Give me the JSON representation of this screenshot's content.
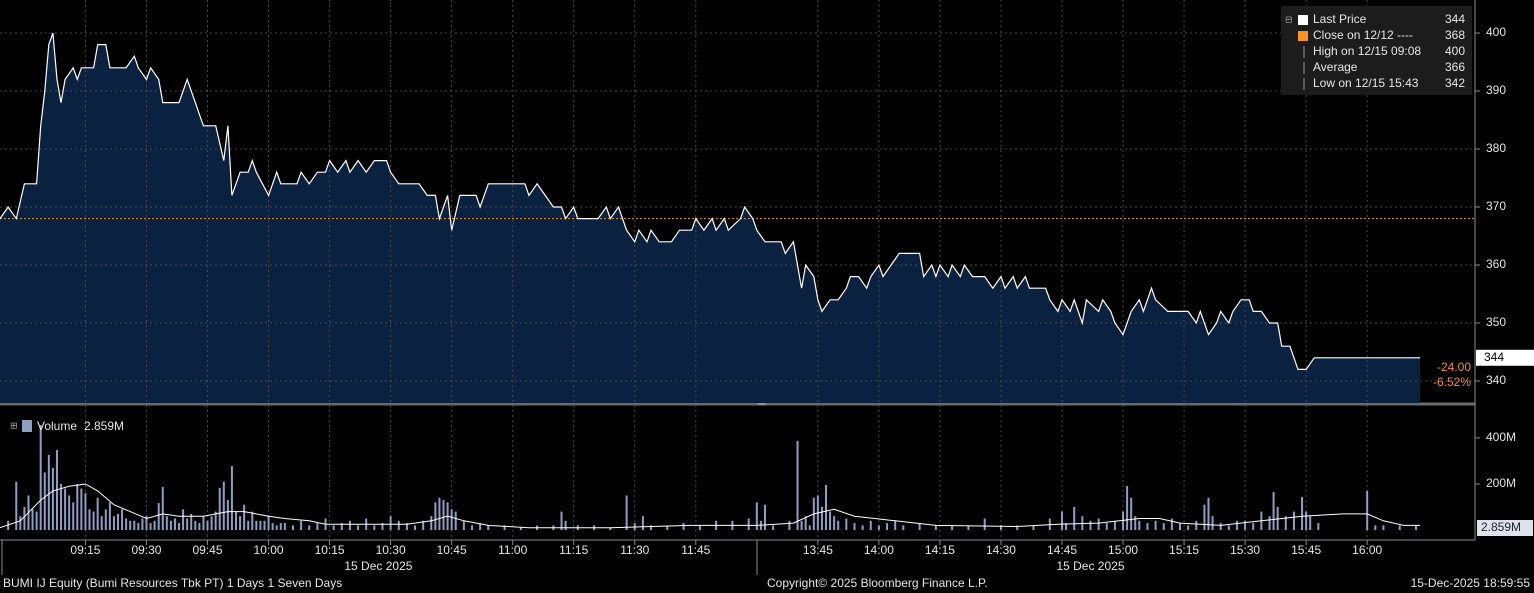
{
  "chart_data": [
    {
      "type": "line",
      "name": "Last Price",
      "color": "#ffffff",
      "fill": "#0b2140",
      "x": [
        0,
        2,
        4,
        6,
        9,
        10,
        11,
        12,
        13,
        14,
        15,
        16,
        18,
        19,
        20,
        23,
        24,
        26,
        27,
        31,
        33,
        34,
        36,
        37,
        39,
        40,
        44,
        46,
        48,
        50,
        53,
        55,
        56,
        57,
        59,
        61,
        62,
        63,
        66,
        68,
        69,
        73,
        74,
        76,
        78,
        80,
        81,
        83,
        85,
        86,
        88,
        90,
        92,
        95,
        96,
        98,
        103,
        105,
        107,
        108,
        110,
        111,
        113,
        117,
        118,
        120,
        129,
        130,
        132,
        134,
        136,
        138,
        139,
        141,
        142,
        147,
        149,
        150,
        152,
        154,
        156,
        157,
        159,
        160,
        162,
        165,
        167,
        170,
        171,
        173,
        175,
        176,
        178,
        179,
        182,
        183,
        185,
        186,
        188,
        192,
        193,
        195,
        196,
        197,
        198,
        200,
        201,
        202,
        204,
        206,
        208,
        209,
        211,
        213,
        214,
        216,
        217,
        219,
        221,
        226,
        227,
        229,
        230,
        231,
        233,
        234,
        236,
        237,
        239,
        242,
        244,
        246,
        247,
        249,
        250,
        252,
        253,
        257,
        258,
        260,
        261,
        263,
        264,
        266,
        267,
        270,
        271,
        273,
        274,
        276,
        278,
        280,
        281,
        283,
        284,
        287,
        292,
        294,
        295,
        297,
        299,
        300,
        302,
        303,
        305,
        307,
        308,
        310,
        312,
        314,
        315,
        317,
        319,
        321,
        323,
        349
      ],
      "values": [
        368,
        370,
        368,
        374,
        374,
        384,
        390,
        398,
        400,
        392,
        388,
        392,
        394,
        392,
        394,
        394,
        398,
        398,
        394,
        394,
        396,
        394,
        392,
        394,
        392,
        388,
        388,
        392,
        388,
        384,
        384,
        378,
        384,
        372,
        376,
        376,
        378,
        376,
        372,
        376,
        374,
        374,
        376,
        374,
        376,
        376,
        378,
        376,
        378,
        376,
        378,
        376,
        378,
        378,
        376,
        374,
        374,
        372,
        372,
        368,
        372,
        366,
        372,
        372,
        370,
        374,
        374,
        372,
        374,
        372,
        370,
        370,
        368,
        370,
        368,
        368,
        370,
        368,
        370,
        366,
        364,
        366,
        364,
        366,
        364,
        364,
        366,
        366,
        368,
        366,
        368,
        366,
        368,
        366,
        368,
        370,
        368,
        366,
        364,
        364,
        362,
        364,
        360,
        356,
        360,
        358,
        354,
        352,
        354,
        354,
        356,
        358,
        358,
        356,
        358,
        360,
        358,
        360,
        362,
        362,
        358,
        360,
        358,
        360,
        358,
        360,
        358,
        360,
        358,
        358,
        356,
        358,
        356,
        358,
        356,
        358,
        356,
        356,
        354,
        352,
        354,
        352,
        354,
        350,
        354,
        352,
        354,
        352,
        350,
        348,
        352,
        354,
        352,
        356,
        354,
        352,
        352,
        350,
        352,
        348,
        350,
        352,
        350,
        352,
        354,
        354,
        352,
        352,
        350,
        350,
        346,
        346,
        342,
        342,
        344,
        344
      ],
      "xlim": [
        0,
        362.5
      ],
      "xticks": [
        {
          "value": 21,
          "label": "09:15"
        },
        {
          "value": 36,
          "label": "09:30"
        },
        {
          "value": 51,
          "label": "09:45"
        },
        {
          "value": 66,
          "label": "10:00"
        },
        {
          "value": 81,
          "label": "10:15"
        },
        {
          "value": 96,
          "label": "10:30"
        },
        {
          "value": 111,
          "label": "10:45"
        },
        {
          "value": 126,
          "label": "11:00"
        },
        {
          "value": 141,
          "label": "11:15"
        },
        {
          "value": 156,
          "label": "11:30"
        },
        {
          "value": 171,
          "label": "11:45"
        },
        {
          "value": 201,
          "label": "13:45"
        },
        {
          "value": 216,
          "label": "14:00"
        },
        {
          "value": 231,
          "label": "14:15"
        },
        {
          "value": 246,
          "label": "14:30"
        },
        {
          "value": 261,
          "label": "14:45"
        },
        {
          "value": 276,
          "label": "15:00"
        },
        {
          "value": 291,
          "label": "15:15"
        },
        {
          "value": 306,
          "label": "15:30"
        },
        {
          "value": 321,
          "label": "15:45"
        },
        {
          "value": 336,
          "label": "16:00"
        }
      ],
      "date_labels": [
        "15 Dec 2025",
        "15 Dec 2025"
      ],
      "ylim": [
        336.2,
        405.7
      ],
      "yticks": [
        340,
        350,
        360,
        370,
        380,
        390,
        400
      ],
      "grid": true,
      "legend": [
        {
          "label": "Last Price",
          "value": 344,
          "color": "#ffffff"
        },
        {
          "label": "Close on 12/12 ----",
          "value": 368,
          "color": "#f7931e"
        },
        {
          "label": "High on 12/15 09:08",
          "value": 400
        },
        {
          "label": "Average",
          "value": 366
        },
        {
          "label": "Low on 12/15 15:43",
          "value": 342
        }
      ],
      "change": "-24.00",
      "change_pct": "-6.52%",
      "change_color": "#f7931e"
    },
    {
      "type": "bar",
      "name": "Volume",
      "color": "#8f9ec4",
      "last_label": "2.859M",
      "x": [
        2,
        4,
        5,
        6,
        7,
        8,
        9,
        10,
        11,
        12,
        13,
        14,
        15,
        16,
        17,
        18,
        19,
        20,
        21,
        22,
        23,
        24,
        25,
        26,
        27,
        28,
        29,
        30,
        31,
        32,
        33,
        34,
        35,
        36,
        37,
        38,
        39,
        40,
        41,
        42,
        43,
        44,
        45,
        46,
        47,
        48,
        49,
        50,
        51,
        52,
        53,
        54,
        55,
        56,
        57,
        58,
        59,
        60,
        61,
        62,
        63,
        64,
        65,
        66,
        67,
        68,
        69,
        70,
        72,
        74,
        76,
        78,
        80,
        82,
        84,
        86,
        88,
        90,
        92,
        94,
        96,
        98,
        100,
        102,
        104,
        106,
        107,
        108,
        109,
        110,
        111,
        112,
        114,
        116,
        118,
        120,
        124,
        128,
        132,
        136,
        138,
        139,
        142,
        146,
        150,
        154,
        156,
        158,
        160,
        164,
        168,
        172,
        176,
        180,
        184,
        186,
        187,
        188,
        190,
        194,
        196,
        197,
        198,
        199,
        200,
        201,
        202,
        203,
        204,
        205,
        206,
        208,
        210,
        212,
        214,
        216,
        218,
        220,
        222,
        226,
        230,
        234,
        238,
        242,
        246,
        250,
        254,
        258,
        261,
        262,
        264,
        266,
        268,
        270,
        272,
        274,
        276,
        277,
        278,
        279,
        280,
        282,
        284,
        286,
        288,
        290,
        292,
        294,
        296,
        297,
        298,
        300,
        302,
        304,
        306,
        308,
        310,
        312,
        313,
        314,
        316,
        318,
        320,
        321,
        322,
        324,
        336,
        338,
        340,
        344,
        348
      ],
      "values": [
        40,
        210,
        60,
        100,
        150,
        90,
        80,
        456,
        250,
        326,
        270,
        348,
        200,
        180,
        150,
        120,
        200,
        180,
        160,
        90,
        80,
        140,
        60,
        90,
        120,
        60,
        70,
        90,
        50,
        40,
        40,
        30,
        50,
        60,
        30,
        40,
        117,
        187,
        60,
        40,
        50,
        30,
        90,
        50,
        70,
        40,
        30,
        60,
        40,
        60,
        80,
        183,
        210,
        130,
        278,
        80,
        60,
        110,
        40,
        80,
        40,
        40,
        40,
        60,
        30,
        20,
        30,
        30,
        20,
        40,
        20,
        30,
        50,
        20,
        30,
        40,
        20,
        50,
        20,
        30,
        60,
        40,
        30,
        20,
        40,
        60,
        120,
        140,
        130,
        120,
        90,
        80,
        40,
        20,
        30,
        20,
        20,
        10,
        20,
        20,
        80,
        40,
        20,
        20,
        10,
        150,
        30,
        60,
        20,
        20,
        30,
        20,
        40,
        40,
        50,
        120,
        40,
        110,
        20,
        40,
        387,
        40,
        60,
        20,
        140,
        150,
        100,
        195,
        80,
        60,
        40,
        50,
        30,
        20,
        40,
        20,
        30,
        40,
        20,
        30,
        20,
        20,
        20,
        50,
        20,
        20,
        20,
        50,
        80,
        30,
        100,
        60,
        40,
        50,
        30,
        40,
        80,
        191,
        140,
        60,
        40,
        30,
        40,
        30,
        50,
        30,
        20,
        40,
        110,
        140,
        60,
        30,
        20,
        40,
        40,
        30,
        80,
        60,
        165,
        100,
        60,
        80,
        143,
        80,
        60,
        30,
        170,
        20,
        20,
        20,
        20
      ],
      "average": {
        "color": "#ffffff",
        "x": [
          0,
          5,
          10,
          13,
          17,
          21,
          24,
          28,
          32,
          36,
          40,
          44,
          50,
          56,
          60,
          66,
          70,
          76,
          80,
          90,
          100,
          106,
          110,
          114,
          120,
          130,
          150,
          160,
          170,
          180,
          186,
          195,
          200,
          205,
          210,
          215,
          220,
          230,
          250,
          260,
          270,
          280,
          285,
          290,
          300,
          310,
          320,
          330,
          336,
          340,
          345,
          349
        ],
        "values": [
          10,
          40,
          130,
          170,
          190,
          200,
          170,
          110,
          80,
          50,
          70,
          60,
          60,
          80,
          80,
          60,
          50,
          40,
          25,
          25,
          25,
          40,
          60,
          40,
          20,
          10,
          10,
          15,
          20,
          20,
          20,
          30,
          70,
          90,
          60,
          50,
          40,
          20,
          15,
          25,
          30,
          50,
          50,
          30,
          20,
          40,
          60,
          70,
          70,
          40,
          20,
          20
        ]
      },
      "xlim": [
        0,
        362.5
      ],
      "ylim": [
        0,
        530
      ],
      "yticks": [
        {
          "value": 200,
          "label": "200M"
        },
        {
          "value": 400,
          "label": "400M"
        }
      ]
    }
  ],
  "footer": {
    "left": "BUMI IJ Equity (Bumi Resources Tbk PT) 1 Days 1 Seven Days",
    "center": "Copyright© 2025 Bloomberg Finance L.P.",
    "right": "15-Dec-2025 18:59:55"
  }
}
